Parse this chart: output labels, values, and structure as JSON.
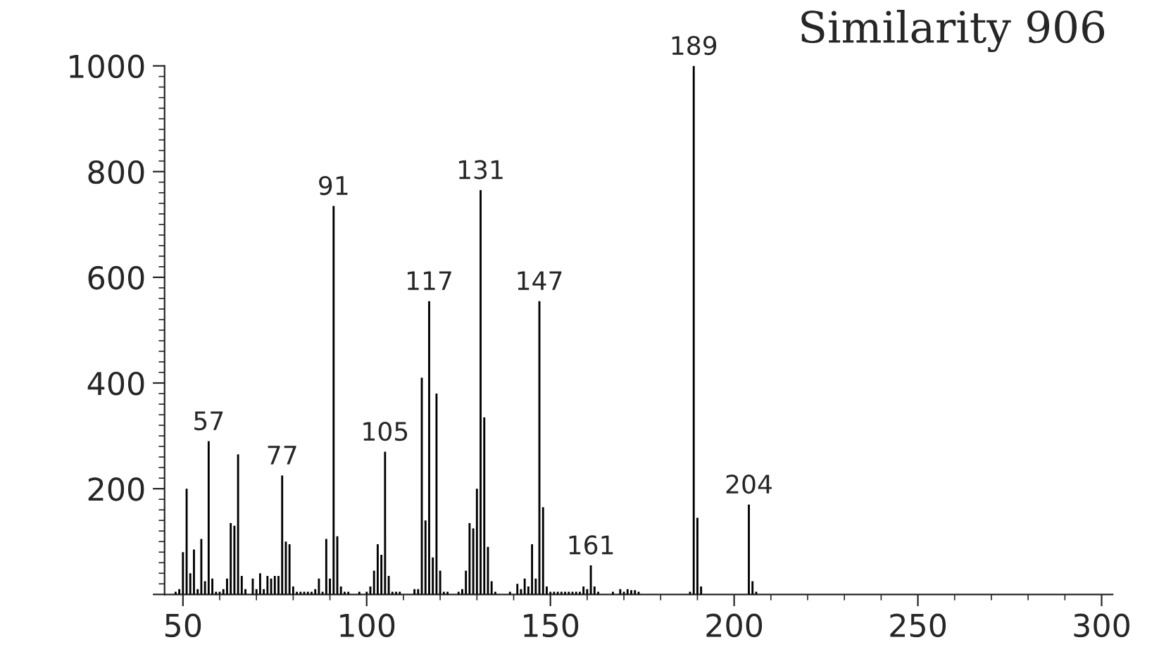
{
  "chart_data": {
    "type": "bar",
    "title": "Similarity 906",
    "x": [
      48,
      49,
      50,
      51,
      52,
      53,
      54,
      55,
      56,
      57,
      58,
      59,
      60,
      61,
      62,
      63,
      64,
      65,
      66,
      67,
      69,
      70,
      71,
      72,
      73,
      74,
      75,
      76,
      77,
      78,
      79,
      80,
      81,
      82,
      83,
      84,
      85,
      86,
      87,
      88,
      89,
      90,
      91,
      92,
      93,
      94,
      95,
      98,
      100,
      101,
      102,
      103,
      104,
      105,
      106,
      107,
      108,
      109,
      113,
      114,
      115,
      116,
      117,
      118,
      119,
      120,
      121,
      122,
      125,
      126,
      127,
      128,
      129,
      130,
      131,
      132,
      133,
      134,
      135,
      139,
      141,
      142,
      143,
      144,
      145,
      146,
      147,
      148,
      149,
      150,
      151,
      152,
      153,
      154,
      155,
      156,
      157,
      158,
      159,
      160,
      161,
      162,
      163,
      167,
      169,
      170,
      171,
      172,
      173,
      174,
      188,
      189,
      190,
      191,
      204,
      205,
      206
    ],
    "values": [
      5,
      10,
      80,
      200,
      40,
      85,
      10,
      105,
      25,
      290,
      30,
      5,
      5,
      10,
      30,
      135,
      130,
      265,
      35,
      10,
      30,
      10,
      40,
      10,
      35,
      30,
      35,
      35,
      225,
      100,
      95,
      15,
      5,
      5,
      5,
      5,
      5,
      10,
      30,
      5,
      105,
      30,
      735,
      110,
      15,
      5,
      5,
      5,
      5,
      15,
      45,
      95,
      75,
      270,
      35,
      5,
      5,
      5,
      10,
      10,
      410,
      140,
      555,
      70,
      380,
      45,
      5,
      5,
      5,
      10,
      45,
      135,
      125,
      200,
      765,
      335,
      90,
      25,
      5,
      5,
      20,
      10,
      30,
      15,
      95,
      30,
      555,
      165,
      15,
      5,
      5,
      5,
      5,
      5,
      5,
      5,
      5,
      5,
      15,
      10,
      55,
      15,
      5,
      5,
      10,
      5,
      10,
      8,
      8,
      5,
      5,
      1000,
      145,
      15,
      170,
      25,
      5
    ],
    "color": "#000000",
    "xlim": [
      45,
      303
    ],
    "xticks": [
      50,
      100,
      150,
      200,
      250,
      300
    ],
    "ylim": [
      0,
      1000
    ],
    "yticks": [
      {
        "value": 0,
        "label": null
      },
      200,
      400,
      600,
      800,
      1000
    ],
    "grid": false,
    "annotations": [
      {
        "text": "57",
        "x": 57,
        "y": 290
      },
      {
        "text": "77",
        "x": 77,
        "y": 225
      },
      {
        "text": "91",
        "x": 91,
        "y": 735
      },
      {
        "text": "105",
        "x": 105,
        "y": 270
      },
      {
        "text": "117",
        "x": 117,
        "y": 555
      },
      {
        "text": "131",
        "x": 131,
        "y": 765
      },
      {
        "text": "147",
        "x": 147,
        "y": 555
      },
      {
        "text": "161",
        "x": 161,
        "y": 55
      },
      {
        "text": "189",
        "x": 189,
        "y": 1000
      },
      {
        "text": "204",
        "x": 204,
        "y": 170
      }
    ]
  }
}
